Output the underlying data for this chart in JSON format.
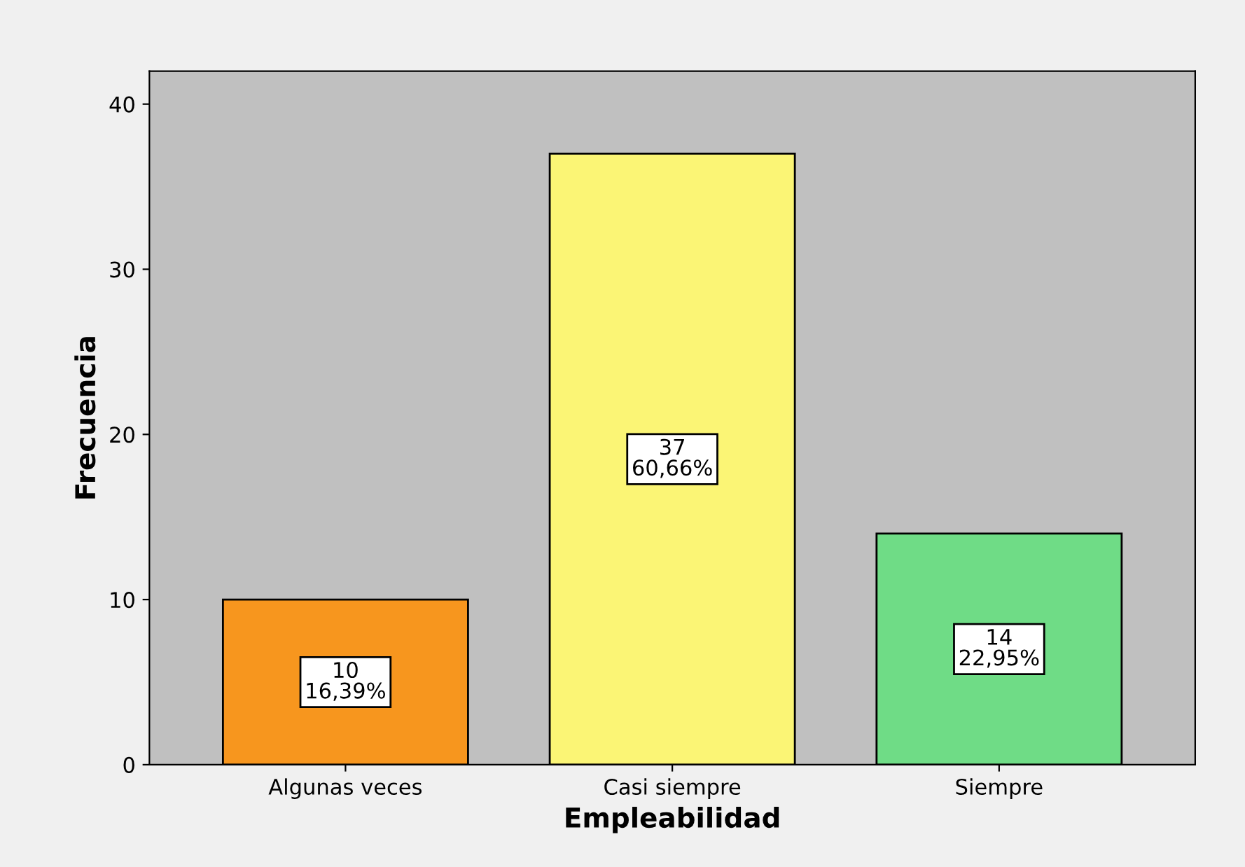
{
  "chart_data": {
    "type": "bar",
    "xlabel": "Empleabilidad",
    "ylabel": "Frecuencia",
    "categories": [
      "Algunas veces",
      "Casi siempre",
      "Siempre"
    ],
    "values": [
      10,
      37,
      14
    ],
    "colors": [
      "#f7961e",
      "#fbf575",
      "#6fdc86"
    ],
    "value_labels": [
      "10\n16,39%",
      "37\n60,66%",
      "14\n22,95%"
    ],
    "ylim": [
      0,
      42
    ],
    "yticks": [
      0,
      10,
      20,
      30,
      40
    ],
    "grid": false,
    "legend": false
  }
}
